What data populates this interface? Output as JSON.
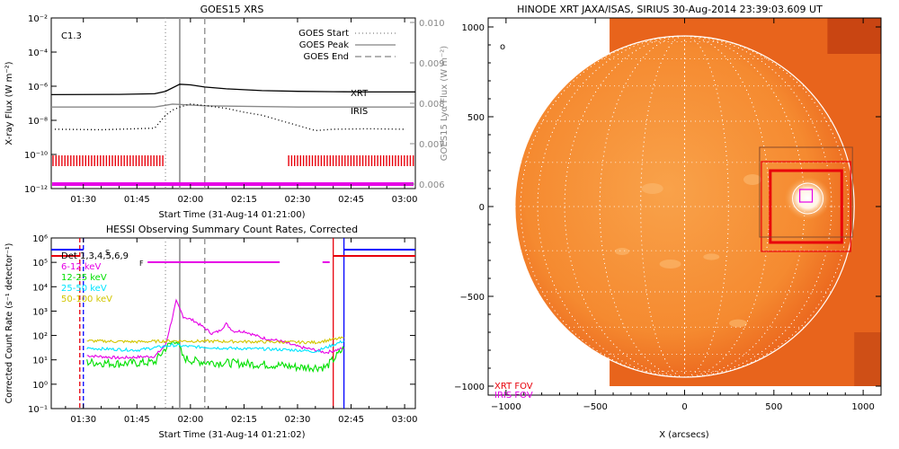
{
  "colors": {
    "xrt": "#e8000b",
    "iris": "#e600e6",
    "hessi_low": "#e600e6",
    "hessi_mid": "#00e000",
    "hessi_high": "#00e5ff",
    "hessi_top": "#d2c600",
    "det_blue": "#0000ff",
    "sun_orange": "#f06a14",
    "frame_gray": "#9a9a9a"
  },
  "goes": {
    "title": "GOES15 XRS",
    "xlabel": "Start Time (31-Aug-14 01:21:00)",
    "ylabel": "X-ray Flux (W m⁻²)",
    "ylabel_right": "GOES15 Lyα Flux (W m⁻²)",
    "flare_class": "C1.3",
    "legend": [
      "GOES Start",
      "GOES Peak",
      "GOES End"
    ],
    "xrt_label": "XRT",
    "iris_label": "IRIS"
  },
  "hessi": {
    "title": "HESSI Observing Summary Count Rates, Corrected",
    "xlabel": "Start Time (31-Aug-14 01:21:02)",
    "ylabel": "Corrected Count Rate (s⁻¹ detector⁻¹)",
    "legend": [
      "Det 1,3,4,5,6,9",
      "6-12 keV",
      "12-25 keV",
      "25-50 keV",
      "50-100 keV"
    ],
    "flag_s": "S",
    "flag_f": "F"
  },
  "hinode": {
    "title": "HINODE XRT JAXA/ISAS, SIRIUS 30-Aug-2014 23:39:03.609 UT",
    "xlabel": "X (arcsecs)",
    "legend": [
      "XRT FOV",
      "IRIS FOV"
    ]
  },
  "chart_data": [
    {
      "type": "line",
      "title": "GOES15 XRS",
      "xlabel": "Start Time (31-Aug-14 01:21:00)",
      "ylabel": "X-ray Flux (W m^-2)",
      "y_scale": "log",
      "ylim": [
        1e-12,
        0.01
      ],
      "y_ticks": [
        "10⁻¹²",
        "10⁻¹⁰",
        "10⁻⁸",
        "10⁻⁶",
        "10⁻⁴",
        "10⁻²"
      ],
      "y_right_label": "GOES15 Lya Flux (W m^-2)",
      "y_right_lim": [
        0.006,
        0.01
      ],
      "y_right_ticks": [
        "0.006",
        "0.007",
        "0.008",
        "0.009",
        "0.010"
      ],
      "x_ticks": [
        "01:30",
        "01:45",
        "02:00",
        "02:15",
        "02:30",
        "02:45",
        "03:00"
      ],
      "x_range_minutes": [
        81,
        183
      ],
      "markers_minutes": {
        "goes_start": 113,
        "goes_peak": 117,
        "goes_end": 124
      },
      "series": [
        {
          "name": "XRT",
          "x": [
            81,
            100,
            110,
            113,
            117,
            120,
            124,
            130,
            140,
            150,
            160,
            170,
            183
          ],
          "values": [
            3.2e-07,
            3.3e-07,
            3.6e-07,
            5e-07,
            1.3e-06,
            1.2e-06,
            9e-07,
            7e-07,
            5.5e-07,
            5e-07,
            4.8e-07,
            4.6e-07,
            4.6e-07
          ]
        },
        {
          "name": "IRIS",
          "x": [
            81,
            110,
            115,
            125,
            150,
            183
          ],
          "values": [
            6e-08,
            6e-08,
            9e-08,
            7e-08,
            6e-08,
            6e-08
          ]
        },
        {
          "name": "GOES long",
          "x": [
            82,
            95,
            110,
            113,
            115,
            117,
            120,
            125,
            130,
            135,
            140,
            145,
            150,
            155,
            160,
            170,
            180
          ],
          "values": [
            3e-09,
            2.8e-09,
            3.5e-09,
            2e-08,
            4e-08,
            6e-08,
            9e-08,
            7e-08,
            5e-08,
            3e-08,
            2e-08,
            1e-08,
            5e-09,
            2.5e-09,
            3e-09,
            3.2e-09,
            3e-09
          ]
        }
      ],
      "xrt_observing_intervals_minutes": [
        [
          81,
          113
        ],
        [
          147,
          183
        ]
      ],
      "iris_observing_interval_minutes": [
        81,
        183
      ]
    },
    {
      "type": "line",
      "title": "HESSI Observing Summary Count Rates, Corrected",
      "xlabel": "Start Time (31-Aug-14 01:21:02)",
      "ylabel": "Corrected Count Rate (s^-1 detector^-1)",
      "y_scale": "log",
      "ylim": [
        0.1,
        1000000.0
      ],
      "y_ticks": [
        "10⁻¹",
        "10⁰",
        "10¹",
        "10²",
        "10³",
        "10⁴",
        "10⁵",
        "10⁶"
      ],
      "x_ticks": [
        "01:30",
        "01:45",
        "02:00",
        "02:15",
        "02:30",
        "02:45",
        "03:00"
      ],
      "x_range_minutes": [
        81,
        183
      ],
      "series": [
        {
          "name": "6-12 keV",
          "x": [
            91,
            100,
            110,
            113,
            115,
            116,
            118,
            121,
            124,
            126,
            128,
            130,
            132,
            135,
            140,
            145,
            150,
            155,
            158,
            163
          ],
          "values": [
            15,
            12,
            14,
            40,
            600,
            2500,
            600,
            400,
            200,
            120,
            150,
            300,
            150,
            150,
            80,
            60,
            35,
            25,
            20,
            30
          ]
        },
        {
          "name": "12-25 keV",
          "x": [
            91,
            100,
            110,
            113,
            116,
            118,
            121,
            125,
            135,
            145,
            150,
            155,
            158,
            163
          ],
          "values": [
            8,
            7,
            8,
            30,
            70,
            12,
            9,
            8,
            7,
            6,
            5,
            5,
            5,
            30
          ]
        },
        {
          "name": "25-50 keV",
          "x": [
            91,
            105,
            115,
            120,
            130,
            140,
            150,
            155,
            163
          ],
          "values": [
            30,
            25,
            40,
            35,
            30,
            28,
            25,
            22,
            60
          ]
        },
        {
          "name": "50-100 keV",
          "x": [
            91,
            105,
            115,
            125,
            140,
            155,
            163
          ],
          "values": [
            60,
            55,
            60,
            58,
            55,
            52,
            80
          ]
        }
      ],
      "attenuator_markers_minutes": [
        {
          "x": 89,
          "color": "red",
          "style": "dash"
        },
        {
          "x": 90,
          "color": "blue",
          "style": "dash"
        },
        {
          "x": 160,
          "color": "red",
          "style": "solid"
        },
        {
          "x": 163,
          "color": "blue",
          "style": "solid"
        }
      ]
    },
    {
      "type": "image",
      "title": "HINODE XRT JAXA/ISAS, SIRIUS 30-Aug-2014 23:39:03.609 UT",
      "xlabel": "X (arcsecs)",
      "xlim": [
        -1100,
        1100
      ],
      "ylim": [
        -1050,
        1050
      ],
      "x_ticks": [
        -1000,
        -500,
        0,
        500,
        1000
      ],
      "y_ticks": [
        -1000,
        -500,
        0,
        500,
        1000
      ],
      "solar_radius_arcsec": 950,
      "fov_boxes": [
        {
          "name": "XRT FOV",
          "color": "red",
          "center": [
            680,
            0
          ],
          "width": 500,
          "height": 500
        },
        {
          "name": "XRT FOV inner",
          "color": "red",
          "center": [
            680,
            0
          ],
          "width": 400,
          "height": 400
        },
        {
          "name": "IRIS FOV",
          "color": "magenta",
          "center": [
            680,
            60
          ],
          "width": 70,
          "height": 70
        }
      ],
      "active_region_center": [
        690,
        45
      ]
    }
  ]
}
